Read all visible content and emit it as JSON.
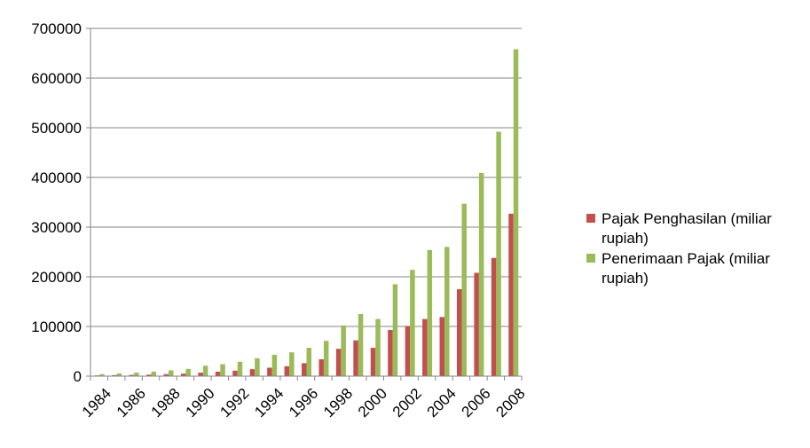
{
  "chart_data": {
    "type": "bar",
    "title": "",
    "xlabel": "",
    "ylabel": "",
    "ylim": [
      0,
      700000
    ],
    "yticks": [
      0,
      100000,
      200000,
      300000,
      400000,
      500000,
      600000,
      700000
    ],
    "ytick_labels": [
      "0",
      "100000",
      "200000",
      "300000",
      "400000",
      "500000",
      "600000",
      "700000"
    ],
    "grid": "horizontal",
    "legend_position": "right",
    "categories": [
      "1984",
      "1985",
      "1986",
      "1987",
      "1988",
      "1989",
      "1990",
      "1991",
      "1992",
      "1993",
      "1994",
      "1995",
      "1996",
      "1997",
      "1998",
      "1999",
      "2000",
      "2001",
      "2002",
      "2003",
      "2004",
      "2005",
      "2006",
      "2007",
      "2008"
    ],
    "xtick_labels": [
      "1984",
      "",
      "1986",
      "",
      "1988",
      "",
      "1990",
      "",
      "1992",
      "",
      "1994",
      "",
      "1996",
      "",
      "1998",
      "",
      "2000",
      "",
      "2002",
      "",
      "2004",
      "",
      "2006",
      "",
      "2008"
    ],
    "series": [
      {
        "name": "Pajak Penghasilan (miliar rupiah)",
        "legend_lines": [
          "Pajak Penghasilan (miliar",
          "rupiah)"
        ],
        "color": "#c0504d",
        "values": [
          1500,
          2000,
          2500,
          3000,
          4000,
          5000,
          7000,
          9000,
          11000,
          14000,
          17000,
          20000,
          26000,
          34000,
          55000,
          72000,
          57000,
          93000,
          101000,
          115000,
          119000,
          175000,
          208000,
          238000,
          327000
        ]
      },
      {
        "name": "Penerimaan Pajak (miliar rupiah)",
        "legend_lines": [
          "Penerimaan Pajak (miliar",
          "rupiah)"
        ],
        "color": "#9bbb59",
        "values": [
          4000,
          5500,
          7000,
          9000,
          11500,
          14500,
          21000,
          24000,
          29000,
          36000,
          43000,
          48000,
          57000,
          71000,
          102000,
          125000,
          115000,
          185000,
          214000,
          254000,
          260000,
          347000,
          409000,
          492000,
          658000
        ]
      }
    ]
  }
}
